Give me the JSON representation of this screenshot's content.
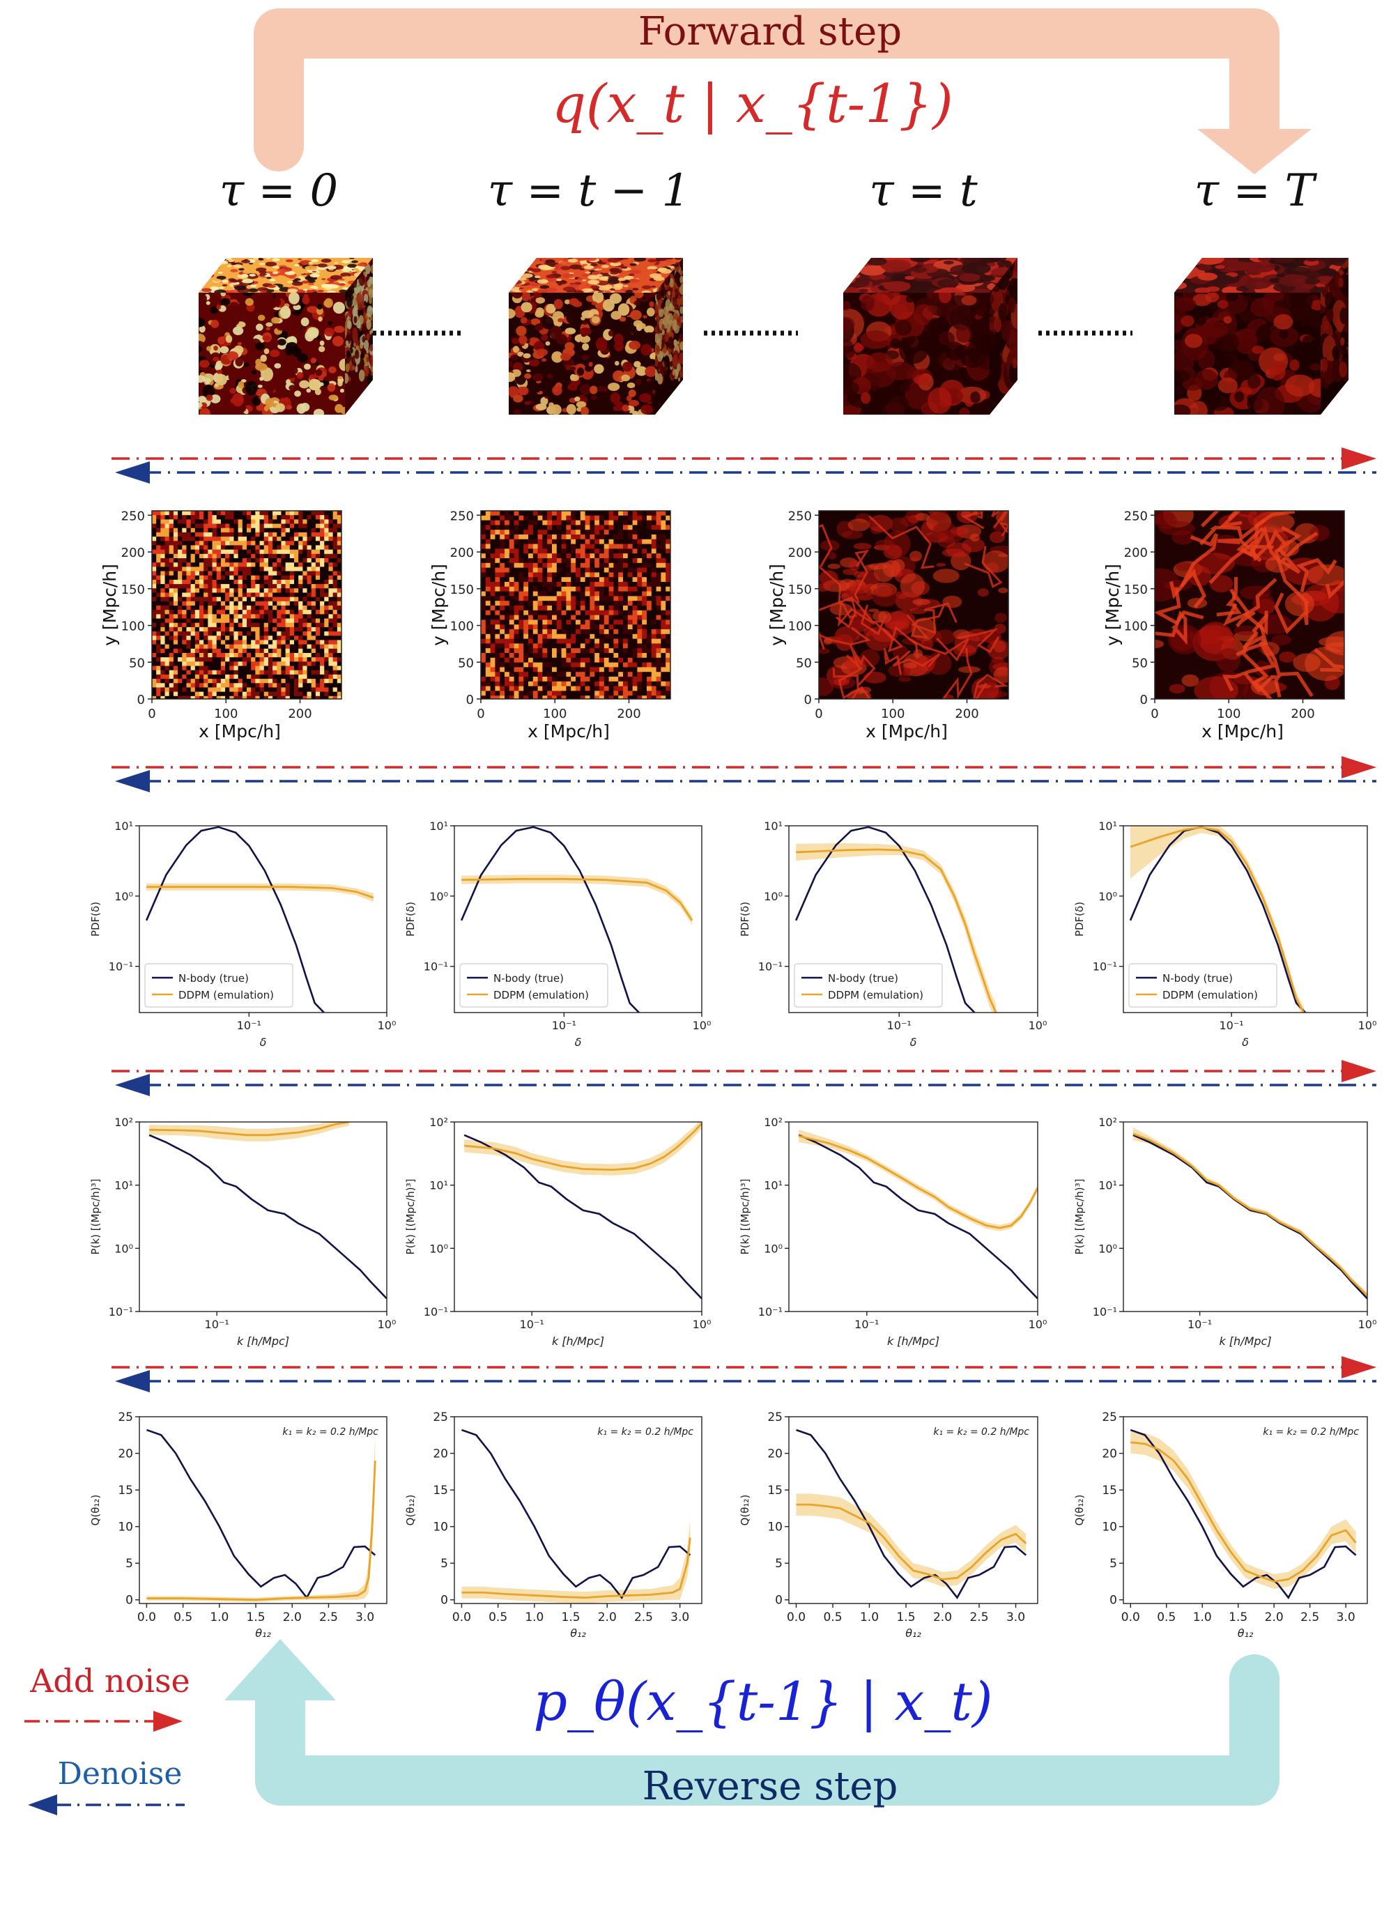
{
  "forward": {
    "title": "Forward step",
    "formula": "q(x_t | x_{t-1})",
    "color": "#7a0f14",
    "formula_color": "#d42a2a",
    "arrow_color": "#f8c9b2"
  },
  "reverse": {
    "title": "Reverse step",
    "formula": "p_θ(x_{t-1} | x_t)",
    "color": "#102a66",
    "formula_color": "#1a22d6",
    "arrow_color": "#b5e2e2"
  },
  "legend": {
    "add_noise": "Add noise",
    "denoise": "Denoise",
    "add_color": "#c9232a",
    "denoise_color": "#1f5faa",
    "red_arrow": "#d42a2a",
    "blue_arrow": "#1d3a8a"
  },
  "columns": [
    {
      "label": "τ = 0",
      "tau": "0"
    },
    {
      "label": "τ = t − 1",
      "tau": "t-1"
    },
    {
      "label": "τ = t",
      "tau": "t"
    },
    {
      "label": "τ = T",
      "tau": "T"
    }
  ],
  "slices": {
    "xlabel": "x [Mpc/h]",
    "ylabel": "y [Mpc/h]",
    "xticks": [
      "0",
      "100",
      "200"
    ],
    "yticks": [
      "0",
      "50",
      "100",
      "150",
      "200",
      "250"
    ],
    "range": [
      0,
      256
    ]
  },
  "chart_data": [
    {
      "type": "line",
      "xscale": "log",
      "yscale": "log",
      "xlabel": "δ",
      "ylabel": "PDF(δ)",
      "xticks": [
        "10⁻¹",
        "10⁰"
      ],
      "yticks": [
        "10¹",
        "10⁰",
        "10⁻¹"
      ],
      "legend": [
        "N-body (true)",
        "DDPM (emulation)"
      ],
      "legend_position": "lower-left",
      "xlim": [
        0.016,
        1.0
      ],
      "ylim": [
        0.022,
        10
      ],
      "truth": {
        "x": [
          0.018,
          0.025,
          0.035,
          0.045,
          0.06,
          0.08,
          0.1,
          0.13,
          0.17,
          0.22,
          0.26,
          0.3,
          0.35
        ],
        "y": [
          0.45,
          2.0,
          5.3,
          8.5,
          9.6,
          8.0,
          5.2,
          2.3,
          0.75,
          0.2,
          0.07,
          0.03,
          0.022
        ]
      },
      "panels": [
        {
          "x": [
            0.018,
            0.05,
            0.1,
            0.2,
            0.4,
            0.6,
            0.8
          ],
          "y": [
            1.35,
            1.35,
            1.35,
            1.35,
            1.3,
            1.15,
            0.95
          ],
          "band": [
            0.05,
            0.05,
            0.05,
            0.05,
            0.05,
            0.05,
            0.06
          ]
        },
        {
          "x": [
            0.018,
            0.05,
            0.1,
            0.2,
            0.4,
            0.55,
            0.7,
            0.85
          ],
          "y": [
            1.7,
            1.75,
            1.75,
            1.7,
            1.55,
            1.2,
            0.8,
            0.45
          ],
          "band": [
            0.06,
            0.06,
            0.06,
            0.06,
            0.06,
            0.06,
            0.06,
            0.06
          ]
        },
        {
          "x": [
            0.018,
            0.04,
            0.07,
            0.1,
            0.15,
            0.2,
            0.25,
            0.3,
            0.35,
            0.4,
            0.45,
            0.5
          ],
          "y": [
            4.2,
            4.5,
            4.6,
            4.5,
            3.8,
            2.4,
            1.0,
            0.4,
            0.15,
            0.07,
            0.035,
            0.022
          ],
          "band": [
            0.12,
            0.1,
            0.08,
            0.07,
            0.07,
            0.07,
            0.08,
            0.1,
            0.12,
            0.12,
            0.12,
            0.12
          ]
        },
        {
          "x": [
            0.018,
            0.03,
            0.045,
            0.06,
            0.08,
            0.1,
            0.13,
            0.17,
            0.22,
            0.26,
            0.3,
            0.34
          ],
          "y": [
            5.0,
            7.0,
            8.8,
            9.5,
            8.6,
            6.0,
            2.8,
            0.95,
            0.26,
            0.09,
            0.035,
            0.022
          ],
          "band": [
            0.45,
            0.25,
            0.12,
            0.08,
            0.08,
            0.08,
            0.08,
            0.08,
            0.08,
            0.08,
            0.08,
            0.08
          ]
        }
      ]
    },
    {
      "type": "line",
      "xscale": "log",
      "yscale": "log",
      "xlabel": "k [h/Mpc]",
      "ylabel": "P(k) [(Mpc/h)³]",
      "xticks": [
        "10⁻¹",
        "10⁰"
      ],
      "yticks": [
        "10²",
        "10¹",
        "10⁰",
        "10⁻¹"
      ],
      "xlim": [
        0.035,
        1.0
      ],
      "ylim": [
        0.1,
        100
      ],
      "truth": {
        "x": [
          0.04,
          0.05,
          0.07,
          0.09,
          0.11,
          0.13,
          0.16,
          0.2,
          0.25,
          0.3,
          0.4,
          0.5,
          0.6,
          0.7,
          0.8,
          1.0
        ],
        "y": [
          62,
          48,
          30,
          19,
          11,
          9.5,
          6.0,
          4.0,
          3.5,
          2.5,
          1.7,
          1.0,
          0.65,
          0.45,
          0.3,
          0.16
        ]
      },
      "panels": [
        {
          "x": [
            0.04,
            0.06,
            0.08,
            0.1,
            0.15,
            0.2,
            0.3,
            0.4,
            0.5,
            0.6
          ],
          "y": [
            75,
            74,
            72,
            68,
            62,
            62,
            68,
            78,
            92,
            100
          ],
          "band": [
            0.08,
            0.08,
            0.09,
            0.1,
            0.1,
            0.1,
            0.09,
            0.08,
            0.07,
            0.06
          ]
        },
        {
          "x": [
            0.04,
            0.06,
            0.08,
            0.1,
            0.15,
            0.2,
            0.3,
            0.4,
            0.5,
            0.6,
            0.7,
            0.8,
            0.9,
            1.0
          ],
          "y": [
            42,
            38,
            32,
            26,
            20,
            18,
            17.5,
            18.5,
            22,
            28,
            38,
            52,
            70,
            95
          ],
          "band": [
            0.1,
            0.1,
            0.1,
            0.09,
            0.09,
            0.09,
            0.09,
            0.09,
            0.09,
            0.09,
            0.09,
            0.09,
            0.08,
            0.08
          ]
        },
        {
          "x": [
            0.04,
            0.06,
            0.08,
            0.1,
            0.13,
            0.16,
            0.2,
            0.25,
            0.3,
            0.4,
            0.5,
            0.6,
            0.7,
            0.8,
            0.9,
            1.0
          ],
          "y": [
            60,
            46,
            35,
            27,
            18,
            13,
            9.0,
            6.5,
            4.5,
            3.0,
            2.3,
            2.1,
            2.3,
            3.2,
            5.2,
            9.0
          ],
          "band": [
            0.1,
            0.07,
            0.06,
            0.05,
            0.05,
            0.05,
            0.05,
            0.05,
            0.05,
            0.05,
            0.05,
            0.05,
            0.05,
            0.05,
            0.05,
            0.05
          ]
        },
        {
          "x": [
            0.04,
            0.05,
            0.07,
            0.09,
            0.11,
            0.13,
            0.16,
            0.2,
            0.25,
            0.3,
            0.4,
            0.5,
            0.6,
            0.7,
            0.8,
            1.0
          ],
          "y": [
            65,
            52,
            32,
            20,
            12,
            10,
            6.2,
            4.2,
            3.6,
            2.6,
            1.8,
            1.05,
            0.7,
            0.48,
            0.32,
            0.18
          ],
          "band": [
            0.1,
            0.06,
            0.05,
            0.04,
            0.04,
            0.04,
            0.04,
            0.04,
            0.04,
            0.04,
            0.04,
            0.04,
            0.04,
            0.04,
            0.04,
            0.04
          ]
        }
      ]
    },
    {
      "type": "line",
      "xscale": "linear",
      "yscale": "linear",
      "xlabel": "θ₁₂",
      "ylabel": "Q(θ₁₂)",
      "annotation": "k₁ = k₂ = 0.2 h/Mpc",
      "xticks": [
        "0.0",
        "0.5",
        "1.0",
        "1.5",
        "2.0",
        "2.5",
        "3.0"
      ],
      "yticks": [
        "0",
        "5",
        "10",
        "15",
        "20",
        "25"
      ],
      "xlim": [
        -0.1,
        3.3
      ],
      "ylim": [
        -0.5,
        25
      ],
      "truth": {
        "x": [
          0.0,
          0.2,
          0.4,
          0.6,
          0.8,
          1.0,
          1.2,
          1.4,
          1.57,
          1.75,
          1.9,
          2.05,
          2.2,
          2.35,
          2.5,
          2.7,
          2.85,
          3.0,
          3.14
        ],
        "y": [
          23.2,
          22.5,
          20.0,
          16.5,
          13.5,
          10.0,
          6.0,
          3.5,
          1.8,
          3.0,
          3.4,
          2.2,
          0.3,
          3.0,
          3.4,
          4.5,
          7.2,
          7.3,
          6.1
        ]
      },
      "panels": [
        {
          "x": [
            0.0,
            0.5,
            1.0,
            1.5,
            1.9,
            2.2,
            2.6,
            2.9,
            3.0,
            3.05,
            3.1,
            3.14
          ],
          "y": [
            0.2,
            0.2,
            0.1,
            0.0,
            0.2,
            0.3,
            0.4,
            0.6,
            1.2,
            3.0,
            10.0,
            19.0
          ],
          "band": [
            0.3,
            0.3,
            0.3,
            0.3,
            0.3,
            0.3,
            0.4,
            0.6,
            1.0,
            2.0,
            3.0,
            3.5
          ]
        },
        {
          "x": [
            0.0,
            0.3,
            0.6,
            1.0,
            1.4,
            1.7,
            2.0,
            2.3,
            2.6,
            2.9,
            3.0,
            3.1,
            3.14
          ],
          "y": [
            1.0,
            1.0,
            0.8,
            0.6,
            0.4,
            0.3,
            0.5,
            0.6,
            0.7,
            1.0,
            1.5,
            5.0,
            8.5
          ],
          "band": [
            0.8,
            0.8,
            0.8,
            0.8,
            0.8,
            0.8,
            0.8,
            0.8,
            0.8,
            1.0,
            1.5,
            2.0,
            2.5
          ]
        },
        {
          "x": [
            0.0,
            0.2,
            0.4,
            0.6,
            0.8,
            1.0,
            1.2,
            1.4,
            1.6,
            1.8,
            2.0,
            2.2,
            2.4,
            2.6,
            2.8,
            3.0,
            3.14
          ],
          "y": [
            13.0,
            13.0,
            12.8,
            12.5,
            11.5,
            10.5,
            8.5,
            6.0,
            4.0,
            3.5,
            2.8,
            3.0,
            4.5,
            6.5,
            8.2,
            9.0,
            7.7
          ],
          "band": [
            1.5,
            1.5,
            1.5,
            1.5,
            1.4,
            1.3,
            1.2,
            1.1,
            1.0,
            1.0,
            1.0,
            1.0,
            1.0,
            1.0,
            1.0,
            1.2,
            1.3
          ]
        },
        {
          "x": [
            0.0,
            0.2,
            0.4,
            0.6,
            0.8,
            1.0,
            1.2,
            1.4,
            1.6,
            1.8,
            2.0,
            2.2,
            2.4,
            2.6,
            2.8,
            3.0,
            3.14
          ],
          "y": [
            21.5,
            21.3,
            20.5,
            19.0,
            16.5,
            13.0,
            9.5,
            6.5,
            4.0,
            3.2,
            2.5,
            2.8,
            4.0,
            6.0,
            8.8,
            9.5,
            7.8
          ],
          "band": [
            1.5,
            1.5,
            1.5,
            1.4,
            1.3,
            1.2,
            1.1,
            1.0,
            1.0,
            1.0,
            1.0,
            1.0,
            1.0,
            1.0,
            1.2,
            1.5,
            1.5
          ]
        }
      ]
    }
  ],
  "colors": {
    "truth": "#12124a",
    "emulation": "#e8a428",
    "band": "#f6d9a0",
    "cube_top": "#3a0404",
    "cube_side": "#1c0202",
    "hot": "#ffe08a",
    "mid": "#e8321c",
    "cold": "#150202"
  }
}
